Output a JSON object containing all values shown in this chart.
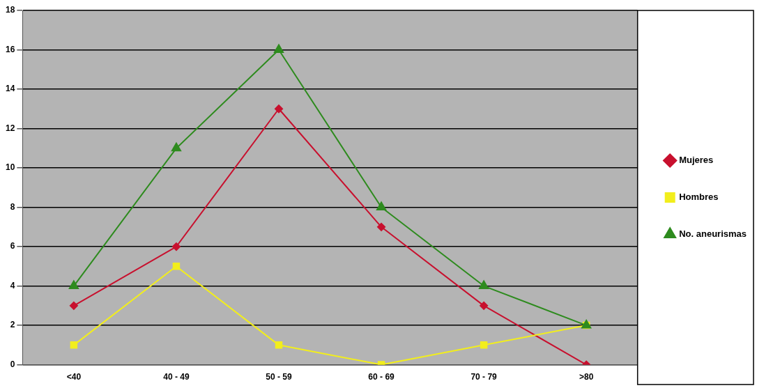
{
  "chart_data": {
    "type": "line",
    "categories": [
      "<40",
      "40 - 49",
      "50 - 59",
      "60 - 69",
      "70 - 79",
      ">80"
    ],
    "series": [
      {
        "name": "Mujeres",
        "color": "#c8102e",
        "marker": "diamond",
        "values": [
          3,
          6,
          13,
          7,
          3,
          0
        ]
      },
      {
        "name": "Hombres",
        "color": "#f2ee1c",
        "marker": "square",
        "values": [
          1,
          5,
          1,
          0,
          1,
          2
        ]
      },
      {
        "name": "No. aneurismas",
        "color": "#2e8b1e",
        "marker": "triangle",
        "values": [
          4,
          11,
          16,
          8,
          4,
          2
        ]
      }
    ],
    "ylim": [
      0,
      18
    ],
    "yticks": [
      0,
      2,
      4,
      6,
      8,
      10,
      12,
      14,
      16,
      18
    ],
    "grid": "y",
    "legend": "right",
    "line_style": "solid"
  }
}
